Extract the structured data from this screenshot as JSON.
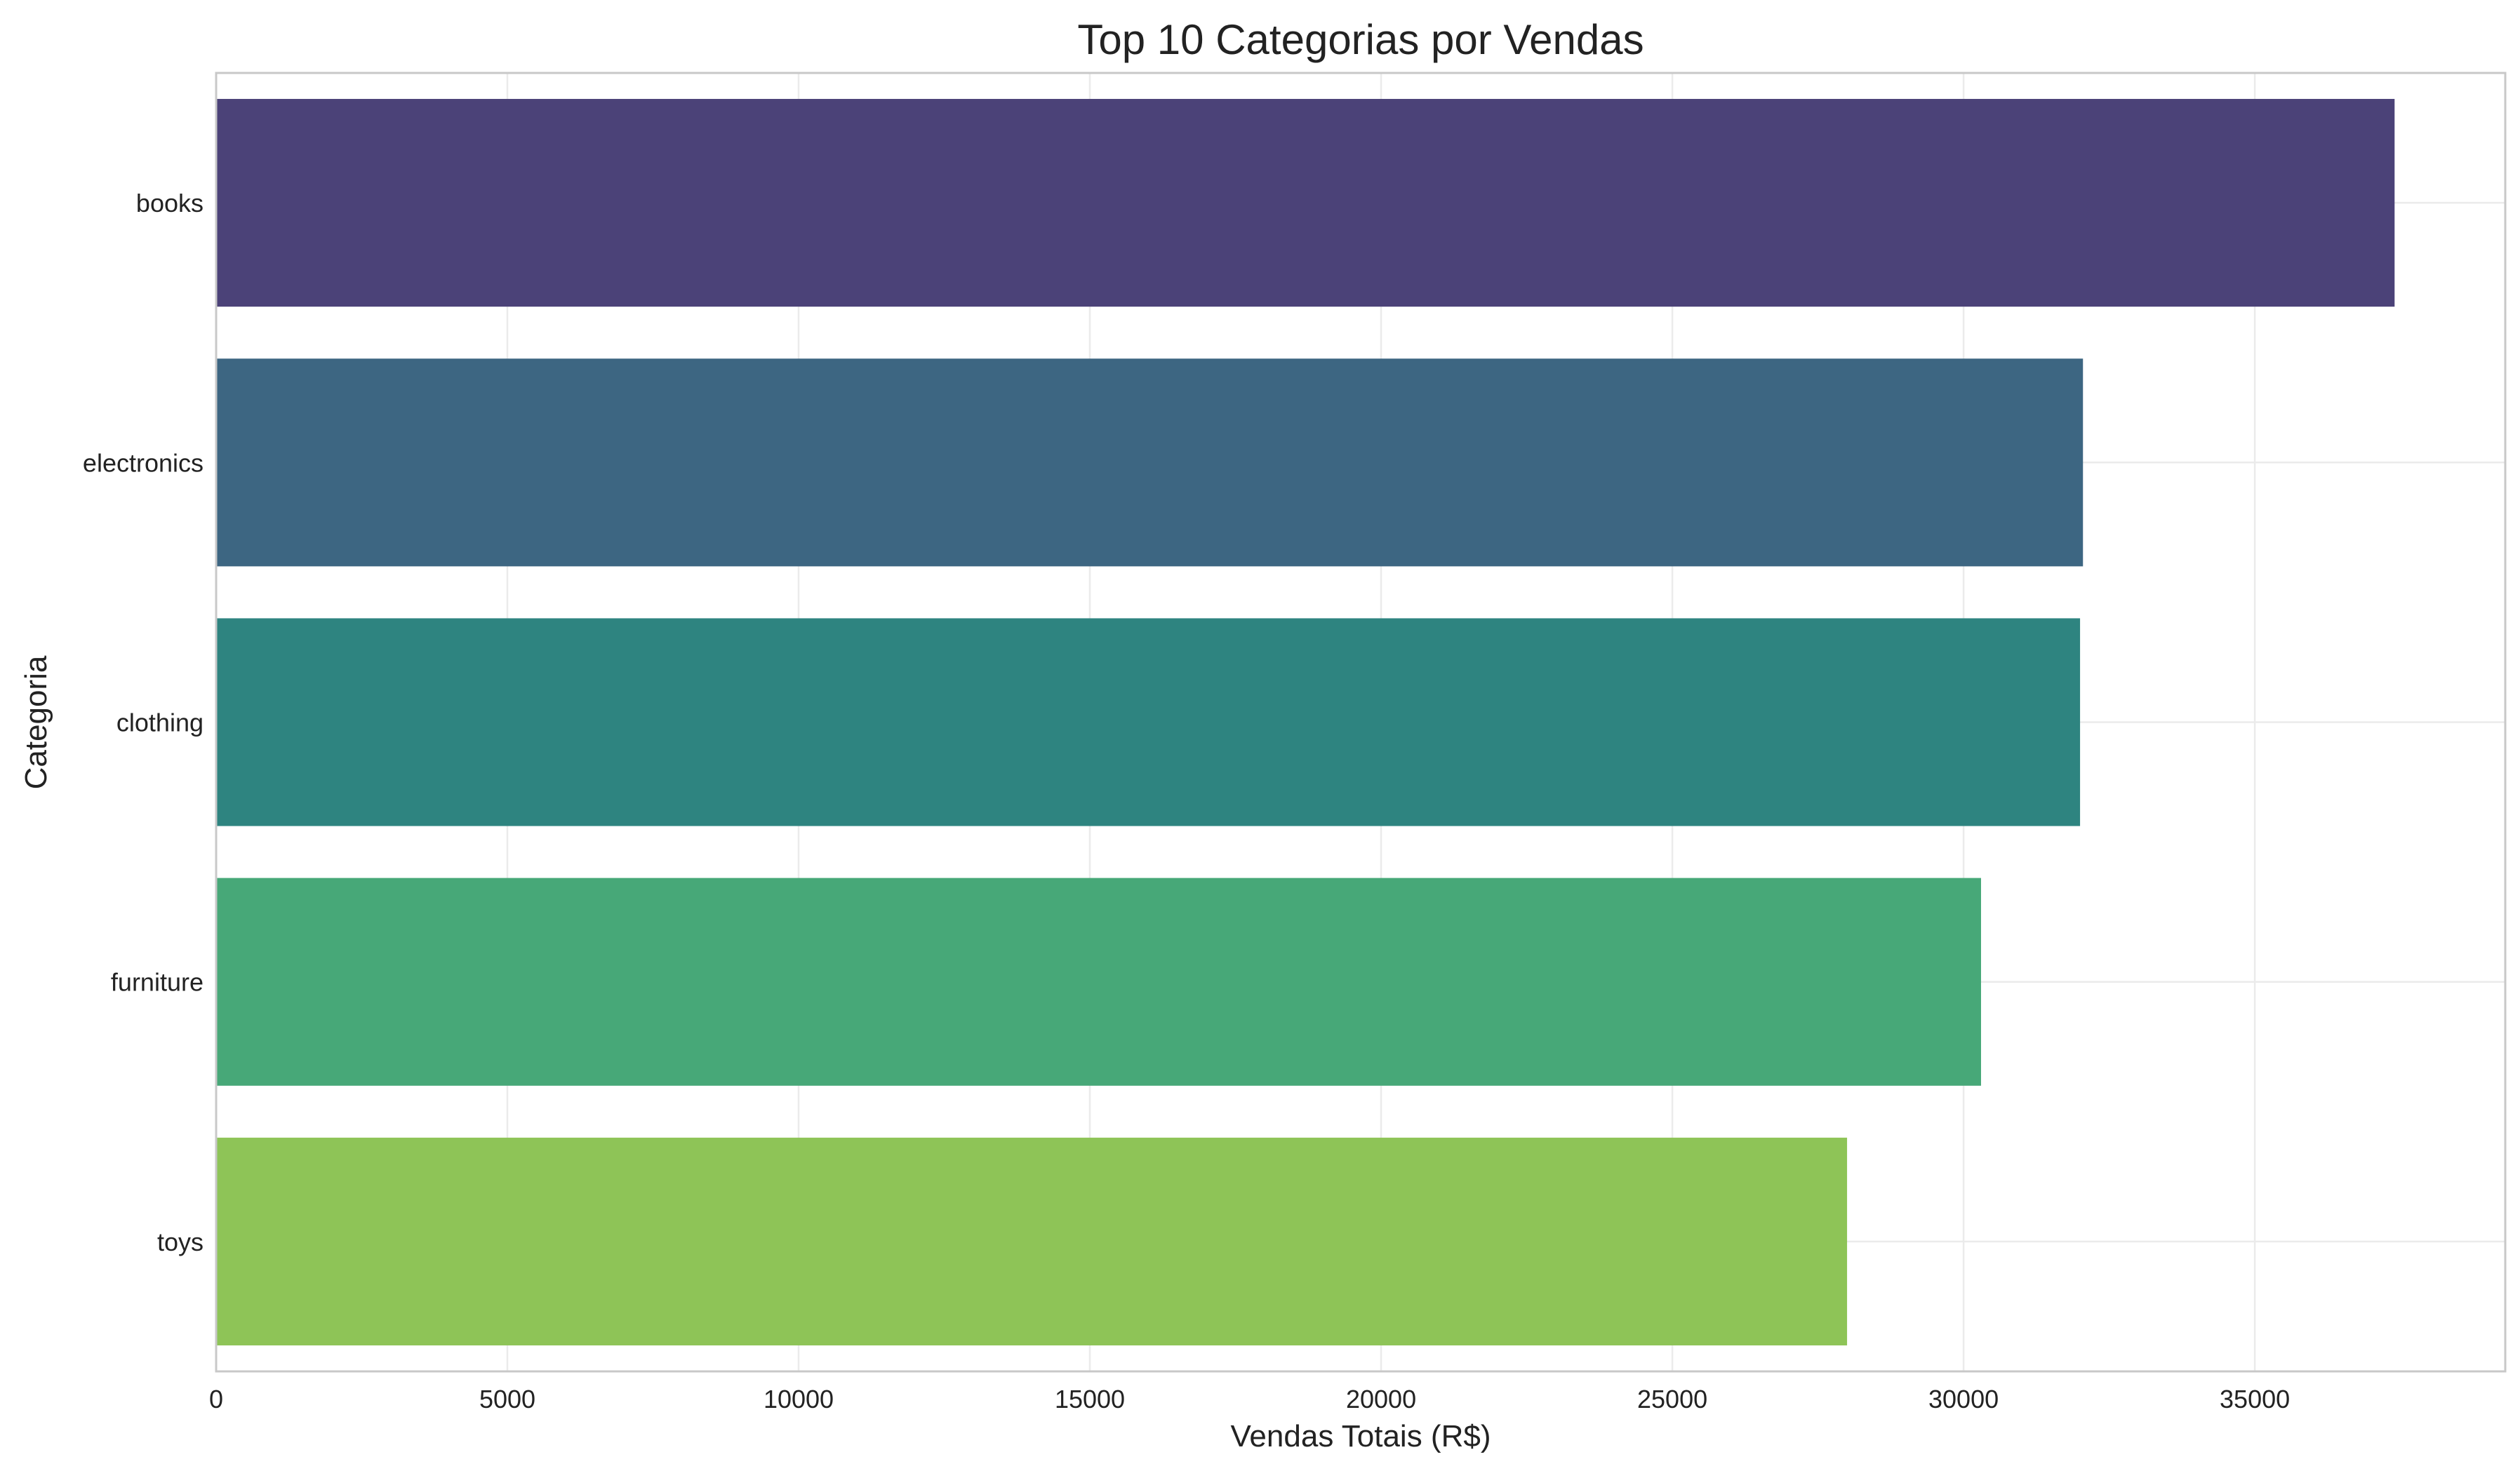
{
  "chart_data": {
    "type": "bar",
    "orientation": "horizontal",
    "title": "Top 10 Categorias por Vendas",
    "xlabel": "Vendas Totais (R$)",
    "ylabel": "Categoria",
    "categories": [
      "books",
      "electronics",
      "clothing",
      "furniture",
      "toys"
    ],
    "values": [
      37400,
      32050,
      32000,
      30300,
      28000
    ],
    "colors": [
      "#4b4278",
      "#3d6682",
      "#2e8480",
      "#47a878",
      "#8ec457"
    ],
    "xlim": [
      0,
      39300
    ],
    "xticks": [
      0,
      5000,
      10000,
      15000,
      20000,
      25000,
      30000,
      35000
    ],
    "xtick_labels": [
      "0",
      "5000",
      "10000",
      "15000",
      "20000",
      "25000",
      "30000",
      "35000"
    ],
    "grid": true,
    "legend": "none"
  }
}
